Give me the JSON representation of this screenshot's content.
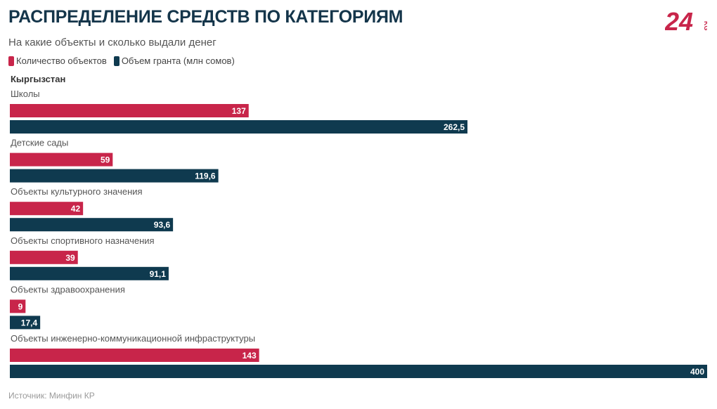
{
  "title": "РАСПРЕДЕЛЕНИЕ СРЕДСТВ ПО КАТЕГОРИЯМ",
  "subtitle": "На какие объекты и сколько выдали денег",
  "group_label": "Кыргызстан",
  "source": "Источник: Минфин КР",
  "logo": {
    "number": "24",
    "suffix": "KG"
  },
  "colors": {
    "count": "#c8254a",
    "grant": "#0f3a4f",
    "logo": "#c8254a"
  },
  "chart_data": {
    "type": "bar",
    "orientation": "horizontal",
    "title": "РАСПРЕДЕЛЕНИЕ СРЕДСТВ ПО КАТЕГОРИЯМ",
    "categories": [
      "Школы",
      "Детские сады",
      "Объекты культурного значения",
      "Объекты спортивного назначения",
      "Объекты здравоохранения",
      "Объекты инженерно-коммуникационной инфраструктуры"
    ],
    "series": [
      {
        "name": "Количество объектов",
        "values": [
          137,
          59,
          42,
          39,
          9,
          143
        ],
        "labels": [
          "137",
          "59",
          "42",
          "39",
          "9",
          "143"
        ]
      },
      {
        "name": "Объем гранта (млн сомов)",
        "values": [
          262.5,
          119.6,
          93.6,
          91.1,
          17.4,
          400
        ],
        "labels": [
          "262,5",
          "119,6",
          "93,6",
          "91,1",
          "17,4",
          "400"
        ]
      }
    ],
    "xlim": [
      0,
      400
    ],
    "legend": "top-left"
  }
}
